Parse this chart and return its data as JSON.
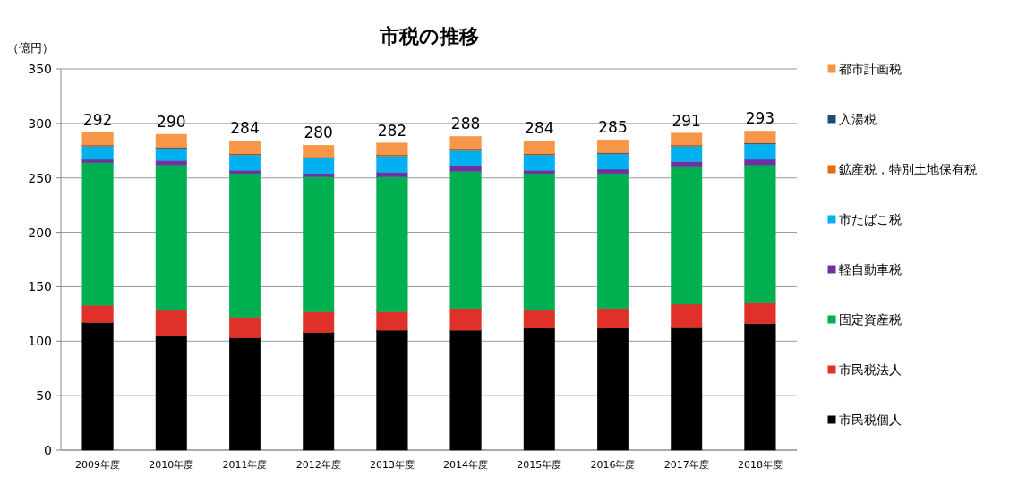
{
  "chart_data": {
    "type": "bar",
    "title": "市税の推移",
    "ylabel": "（億円）",
    "stacked": true,
    "categories": [
      "2009年度",
      "2010年度",
      "2011年度",
      "2012年度",
      "2013年度",
      "2014年度",
      "2015年度",
      "2016年度",
      "2017年度",
      "2018年度"
    ],
    "series": [
      {
        "name": "市民税個人",
        "color": "#000000",
        "values": [
          117,
          105,
          103,
          108,
          110,
          110,
          112,
          112,
          113,
          116
        ]
      },
      {
        "name": "市民税法人",
        "color": "#e0302a",
        "values": [
          16,
          24,
          19,
          19,
          17,
          20,
          17,
          18,
          21,
          19
        ]
      },
      {
        "name": "固定資産税",
        "color": "#00b050",
        "values": [
          131,
          133,
          132,
          124,
          124,
          126,
          125,
          124,
          126,
          127
        ]
      },
      {
        "name": "軽自動車税",
        "color": "#7030a0",
        "values": [
          3,
          4,
          3,
          3,
          4,
          5,
          3,
          4,
          5,
          5
        ]
      },
      {
        "name": "市たばこ税",
        "color": "#00b0f0",
        "values": [
          12,
          11,
          14,
          14,
          15,
          14,
          14,
          14,
          14,
          14
        ]
      },
      {
        "name": "鉱産税，特別土地保有税",
        "color": "#e46c0a",
        "values": [
          0.5,
          0.5,
          0.5,
          0.5,
          0.5,
          0.5,
          0.5,
          0.5,
          0.5,
          0.5
        ]
      },
      {
        "name": "入湯税",
        "color": "#1f497d",
        "values": [
          0.5,
          0.5,
          0.5,
          0.5,
          0.5,
          0.5,
          0.5,
          0.5,
          0.5,
          0.5
        ]
      },
      {
        "name": "都市計画税",
        "color": "#f79646",
        "values": [
          12,
          12,
          12,
          11,
          11,
          12,
          12,
          12,
          11,
          11
        ]
      }
    ],
    "totals": [
      "292",
      "290",
      "284",
      "280",
      "282",
      "288",
      "284",
      "285",
      "291",
      "293"
    ],
    "ylim": [
      0,
      350
    ],
    "yticks": [
      0,
      50,
      100,
      150,
      200,
      250,
      300,
      350
    ],
    "grid": "y",
    "legend": "right"
  }
}
